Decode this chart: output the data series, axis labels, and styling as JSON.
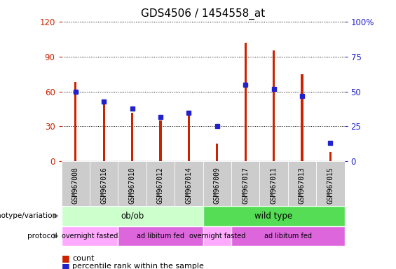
{
  "title": "GDS4506 / 1454558_at",
  "samples": [
    "GSM967008",
    "GSM967016",
    "GSM967010",
    "GSM967012",
    "GSM967014",
    "GSM967009",
    "GSM967017",
    "GSM967011",
    "GSM967013",
    "GSM967015"
  ],
  "counts": [
    68,
    52,
    42,
    35,
    42,
    15,
    102,
    95,
    75,
    8
  ],
  "percentile_ranks": [
    50,
    43,
    38,
    32,
    35,
    25,
    55,
    52,
    47,
    13
  ],
  "ylim_left": [
    0,
    120
  ],
  "ylim_right": [
    0,
    100
  ],
  "yticks_left": [
    0,
    30,
    60,
    90,
    120
  ],
  "yticks_right": [
    0,
    25,
    50,
    75,
    100
  ],
  "bar_color": "#cc2200",
  "dot_color": "#2222cc",
  "genotype_groups": [
    {
      "label": "ob/ob",
      "start": 0,
      "end": 5,
      "color": "#ccffcc"
    },
    {
      "label": "wild type",
      "start": 5,
      "end": 10,
      "color": "#55dd55"
    }
  ],
  "protocol_groups": [
    {
      "label": "overnight fasted",
      "start": 0,
      "end": 2,
      "color": "#ffaaff"
    },
    {
      "label": "ad libitum fed",
      "start": 2,
      "end": 5,
      "color": "#dd66dd"
    },
    {
      "label": "overnight fasted",
      "start": 5,
      "end": 6,
      "color": "#ffaaff"
    },
    {
      "label": "ad libitum fed",
      "start": 6,
      "end": 10,
      "color": "#dd66dd"
    }
  ],
  "left_label_color": "#cc2200",
  "right_label_color": "#2222cc",
  "background_color": "#ffffff",
  "grid_color": "#000000",
  "tick_label_bg": "#cccccc",
  "bar_width": 0.08
}
